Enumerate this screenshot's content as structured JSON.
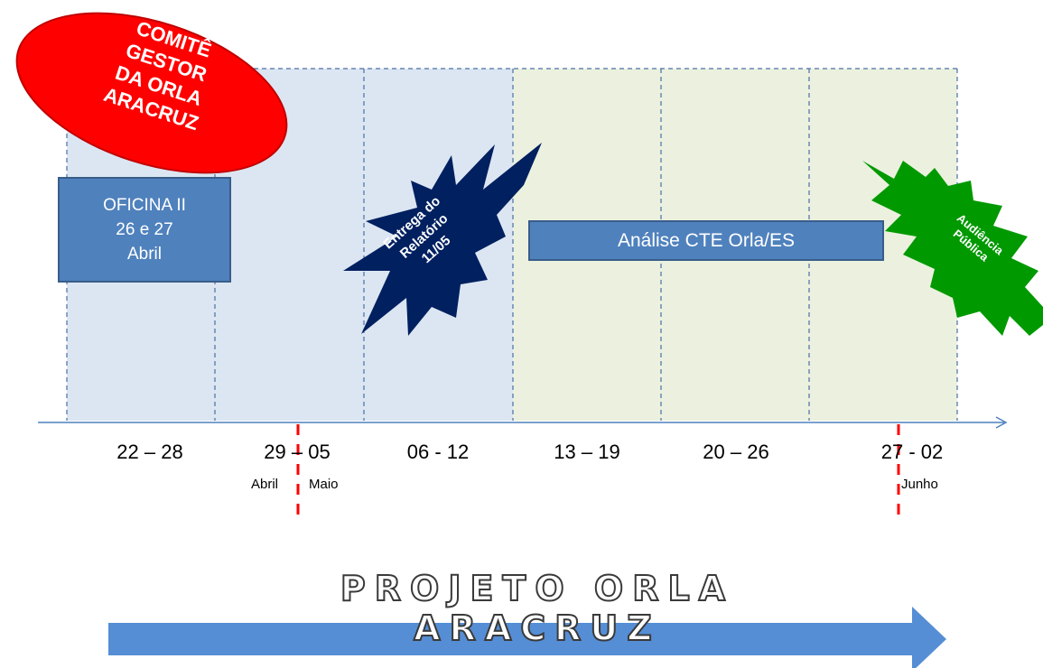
{
  "badge": {
    "lines": [
      "COMITÊ",
      "GESTOR",
      "DA ORLA",
      "ARACRUZ"
    ],
    "color": "#ff0000"
  },
  "weeks": [
    "22 – 28",
    "29 – 05",
    "06  -  12",
    "13 – 19",
    "20 – 26",
    "27 - 02"
  ],
  "months": {
    "abril": "Abril",
    "maio": "Maio",
    "junho": "Junho"
  },
  "oficina": {
    "lines": [
      "OFICINA II",
      "26 e 27",
      "Abril"
    ]
  },
  "entrega": {
    "lines": [
      "Entrega do",
      "Relatório",
      "11/05"
    ],
    "color": "#002060"
  },
  "analise": {
    "label": "Análise CTE Orla/ES"
  },
  "audiencia": {
    "lines": [
      "Audiência",
      "Pública"
    ],
    "color": "#009900"
  },
  "title": "PROJETO  ORLA  ARACRUZ",
  "colors": {
    "phase1": "#dce6f2",
    "phase2": "#ebf1de",
    "box": "#4f81bd",
    "arrow": "#4f81bd",
    "marker": "#ff0000"
  }
}
